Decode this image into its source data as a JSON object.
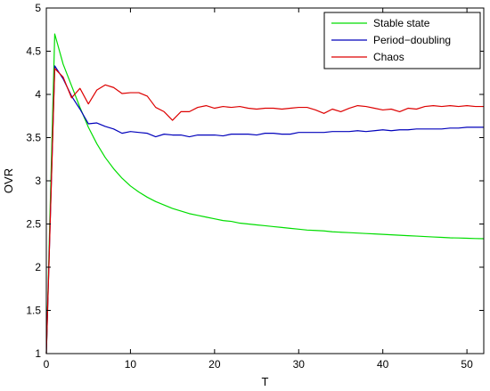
{
  "chart_data": {
    "type": "line",
    "title": "",
    "xlabel": "T",
    "ylabel": "OVR",
    "xlim": [
      0,
      52
    ],
    "ylim": [
      1,
      5
    ],
    "xticks": [
      0,
      10,
      20,
      30,
      40,
      50
    ],
    "yticks": [
      1,
      1.5,
      2,
      2.5,
      3,
      3.5,
      4,
      4.5,
      5
    ],
    "xtick_labels": [
      "0",
      "10",
      "20",
      "30",
      "40",
      "50"
    ],
    "ytick_labels": [
      "1",
      "1.5",
      "2",
      "2.5",
      "3",
      "3.5",
      "4",
      "4.5",
      "5"
    ],
    "grid": false,
    "legend_position": "top-right",
    "series": [
      {
        "name": "Stable state",
        "color": "#00dd00",
        "x": [
          0,
          1,
          2,
          3,
          4,
          5,
          6,
          7,
          8,
          9,
          10,
          11,
          12,
          13,
          14,
          15,
          16,
          17,
          18,
          19,
          20,
          21,
          22,
          23,
          24,
          25,
          26,
          27,
          28,
          29,
          30,
          31,
          32,
          33,
          34,
          35,
          36,
          37,
          38,
          39,
          40,
          41,
          42,
          43,
          44,
          45,
          46,
          47,
          48,
          49,
          50,
          51,
          52
        ],
        "y": [
          1.0,
          4.7,
          4.35,
          4.1,
          3.85,
          3.62,
          3.43,
          3.27,
          3.14,
          3.03,
          2.94,
          2.87,
          2.81,
          2.76,
          2.72,
          2.68,
          2.65,
          2.62,
          2.6,
          2.58,
          2.56,
          2.54,
          2.53,
          2.51,
          2.5,
          2.49,
          2.48,
          2.47,
          2.46,
          2.45,
          2.44,
          2.43,
          2.425,
          2.42,
          2.41,
          2.405,
          2.4,
          2.395,
          2.39,
          2.385,
          2.38,
          2.375,
          2.37,
          2.365,
          2.36,
          2.355,
          2.35,
          2.345,
          2.34,
          2.338,
          2.335,
          2.332,
          2.33
        ]
      },
      {
        "name": "Period−doubling",
        "color": "#0000bb",
        "x": [
          0,
          1,
          2,
          3,
          4,
          5,
          6,
          7,
          8,
          9,
          10,
          11,
          12,
          13,
          14,
          15,
          16,
          17,
          18,
          19,
          20,
          21,
          22,
          23,
          24,
          25,
          26,
          27,
          28,
          29,
          30,
          31,
          32,
          33,
          34,
          35,
          36,
          37,
          38,
          39,
          40,
          41,
          42,
          43,
          44,
          45,
          46,
          47,
          48,
          49,
          50,
          51,
          52
        ],
        "y": [
          1.0,
          4.33,
          4.18,
          3.98,
          3.83,
          3.66,
          3.67,
          3.63,
          3.6,
          3.55,
          3.57,
          3.56,
          3.55,
          3.51,
          3.54,
          3.53,
          3.53,
          3.51,
          3.53,
          3.53,
          3.53,
          3.52,
          3.54,
          3.54,
          3.54,
          3.53,
          3.55,
          3.55,
          3.54,
          3.54,
          3.56,
          3.56,
          3.56,
          3.56,
          3.57,
          3.57,
          3.57,
          3.58,
          3.57,
          3.58,
          3.59,
          3.58,
          3.59,
          3.59,
          3.6,
          3.6,
          3.6,
          3.6,
          3.61,
          3.61,
          3.62,
          3.62,
          3.62
        ]
      },
      {
        "name": "Chaos",
        "color": "#dd0000",
        "x": [
          0,
          1,
          2,
          3,
          4,
          5,
          6,
          7,
          8,
          9,
          10,
          11,
          12,
          13,
          14,
          15,
          16,
          17,
          18,
          19,
          20,
          21,
          22,
          23,
          24,
          25,
          26,
          27,
          28,
          29,
          30,
          31,
          32,
          33,
          34,
          35,
          36,
          37,
          38,
          39,
          40,
          41,
          42,
          43,
          44,
          45,
          46,
          47,
          48,
          49,
          50,
          51,
          52
        ],
        "y": [
          1.0,
          4.3,
          4.2,
          3.96,
          4.07,
          3.89,
          4.05,
          4.11,
          4.08,
          4.01,
          4.02,
          4.02,
          3.98,
          3.85,
          3.8,
          3.7,
          3.8,
          3.8,
          3.85,
          3.87,
          3.84,
          3.86,
          3.85,
          3.86,
          3.84,
          3.83,
          3.84,
          3.84,
          3.83,
          3.84,
          3.85,
          3.85,
          3.82,
          3.78,
          3.83,
          3.8,
          3.84,
          3.87,
          3.86,
          3.84,
          3.82,
          3.83,
          3.8,
          3.84,
          3.83,
          3.86,
          3.87,
          3.86,
          3.87,
          3.86,
          3.87,
          3.86,
          3.86
        ]
      }
    ]
  }
}
